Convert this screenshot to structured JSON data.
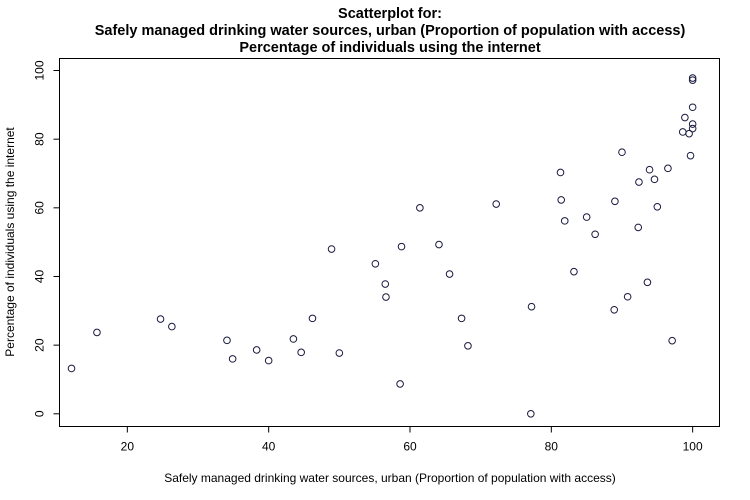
{
  "chart_data": {
    "type": "scatter",
    "title_lines": [
      "Scatterplot for:",
      "Safely managed drinking water sources, urban (Proportion of population with access)",
      "Percentage of individuals using the internet"
    ],
    "xlabel": "Safely managed drinking water sources, urban (Proportion of population with access)",
    "ylabel": "Percentage of individuals using the internet",
    "xlim": [
      10.4,
      103.8
    ],
    "ylim": [
      -3.7,
      103.5
    ],
    "xticks": [
      20,
      40,
      60,
      80,
      100
    ],
    "yticks": [
      0,
      20,
      40,
      60,
      80,
      100
    ],
    "grid": false,
    "point_color": "#1a1a40",
    "points": [
      {
        "x": 12.1,
        "y": 13.2
      },
      {
        "x": 15.7,
        "y": 23.7
      },
      {
        "x": 24.7,
        "y": 27.6
      },
      {
        "x": 26.3,
        "y": 25.4
      },
      {
        "x": 34.1,
        "y": 21.4
      },
      {
        "x": 34.9,
        "y": 16.0
      },
      {
        "x": 38.3,
        "y": 18.6
      },
      {
        "x": 40.0,
        "y": 15.5
      },
      {
        "x": 43.5,
        "y": 21.8
      },
      {
        "x": 44.6,
        "y": 17.9
      },
      {
        "x": 46.2,
        "y": 27.8
      },
      {
        "x": 48.9,
        "y": 48.0
      },
      {
        "x": 50.0,
        "y": 17.7
      },
      {
        "x": 55.1,
        "y": 43.7
      },
      {
        "x": 56.5,
        "y": 37.8
      },
      {
        "x": 56.6,
        "y": 34.0
      },
      {
        "x": 58.6,
        "y": 8.7
      },
      {
        "x": 58.8,
        "y": 48.7
      },
      {
        "x": 61.4,
        "y": 60.0
      },
      {
        "x": 64.1,
        "y": 49.3
      },
      {
        "x": 65.6,
        "y": 40.7
      },
      {
        "x": 67.3,
        "y": 27.8
      },
      {
        "x": 68.2,
        "y": 19.8
      },
      {
        "x": 72.2,
        "y": 61.1
      },
      {
        "x": 77.1,
        "y": 0.0
      },
      {
        "x": 77.2,
        "y": 31.2
      },
      {
        "x": 81.3,
        "y": 70.3
      },
      {
        "x": 81.4,
        "y": 62.3
      },
      {
        "x": 81.9,
        "y": 56.2
      },
      {
        "x": 83.2,
        "y": 41.4
      },
      {
        "x": 85.0,
        "y": 57.3
      },
      {
        "x": 86.2,
        "y": 52.3
      },
      {
        "x": 88.9,
        "y": 30.3
      },
      {
        "x": 89.0,
        "y": 61.9
      },
      {
        "x": 90.0,
        "y": 76.2
      },
      {
        "x": 90.8,
        "y": 34.1
      },
      {
        "x": 92.3,
        "y": 54.3
      },
      {
        "x": 92.4,
        "y": 67.5
      },
      {
        "x": 93.6,
        "y": 38.3
      },
      {
        "x": 93.9,
        "y": 71.1
      },
      {
        "x": 94.6,
        "y": 68.3
      },
      {
        "x": 95.0,
        "y": 60.3
      },
      {
        "x": 96.5,
        "y": 71.5
      },
      {
        "x": 97.1,
        "y": 21.3
      },
      {
        "x": 98.6,
        "y": 82.1
      },
      {
        "x": 98.9,
        "y": 86.3
      },
      {
        "x": 99.5,
        "y": 81.6
      },
      {
        "x": 99.7,
        "y": 75.2
      },
      {
        "x": 100.0,
        "y": 97.2
      },
      {
        "x": 100.0,
        "y": 97.8
      },
      {
        "x": 100.0,
        "y": 89.3
      },
      {
        "x": 100.0,
        "y": 84.4
      },
      {
        "x": 100.0,
        "y": 83.1
      }
    ]
  }
}
